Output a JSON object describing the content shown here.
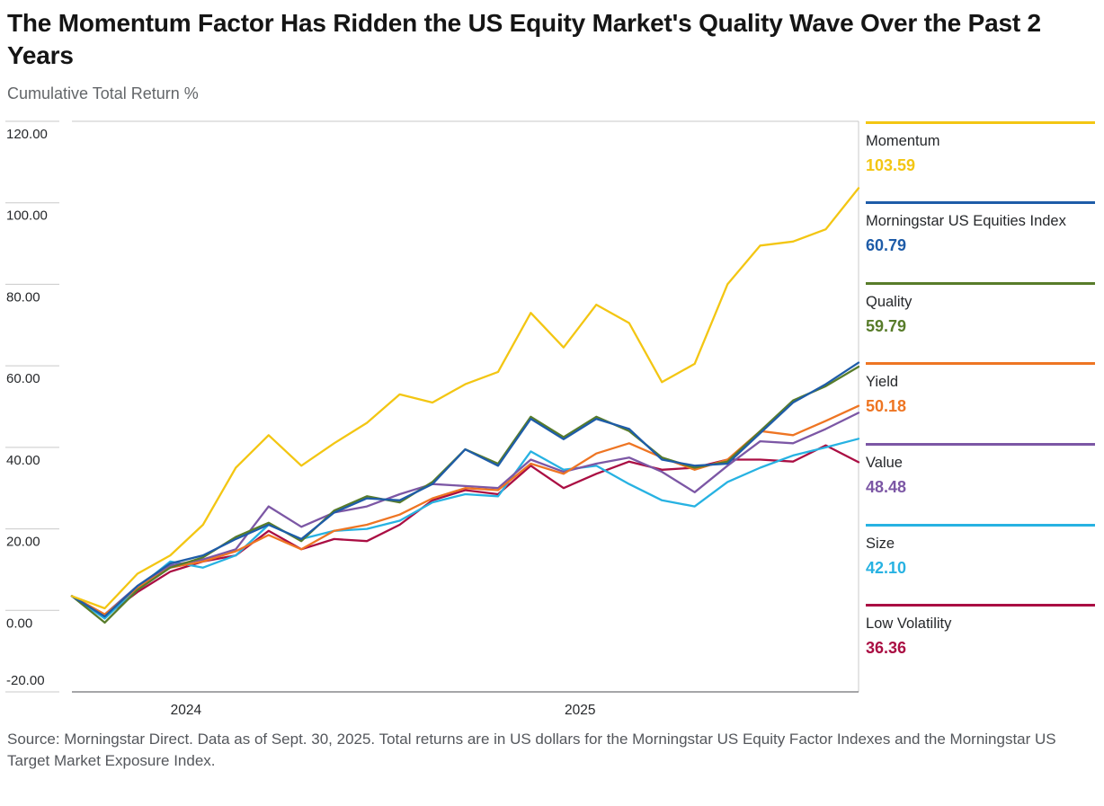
{
  "header": {
    "title": "The Momentum Factor Has Ridden the US Equity Market's Quality Wave Over the Past 2 Years",
    "subtitle": "Cumulative Total Return %"
  },
  "footer": {
    "source": "Source: Morningstar Direct. Data as of Sept. 30, 2025. Total returns are in US dollars for the Morningstar US Equity Factor Indexes and the Morningstar US Target Market Exposure Index."
  },
  "chart_data": {
    "type": "line",
    "title": "The Momentum Factor Has Ridden the US Equity Market's Quality Wave Over the Past 2 Years",
    "ylabel": "Cumulative Total Return %",
    "xlabel": "",
    "ylim": [
      -20,
      120
    ],
    "y_tick_values": [
      120,
      100,
      80,
      60,
      40,
      20,
      0,
      -20
    ],
    "y_tick_labels": [
      "120.00",
      "100.00",
      "80.00",
      "60.00",
      "40.00",
      "20.00",
      "0.00",
      "-20.00"
    ],
    "x_tick_labels": [
      "2024",
      "2025"
    ],
    "x_tick_positions": [
      0.145,
      0.646
    ],
    "grid": false,
    "legend_position": "right",
    "x": [
      "2023-09",
      "2023-10",
      "2023-11",
      "2023-12",
      "2024-01",
      "2024-02",
      "2024-03",
      "2024-04",
      "2024-05",
      "2024-06",
      "2024-07",
      "2024-08",
      "2024-09",
      "2024-10",
      "2024-11",
      "2024-12",
      "2025-01",
      "2025-02",
      "2025-03",
      "2025-04",
      "2025-05",
      "2025-06",
      "2025-07",
      "2025-08",
      "2025-09"
    ],
    "series": [
      {
        "name": "Momentum",
        "display_value": "103.59",
        "color": "#F3C613",
        "values": [
          3.5,
          0.5,
          9,
          13.5,
          21,
          35,
          43,
          35.5,
          41,
          46,
          53,
          51,
          55.5,
          58.5,
          73,
          64.5,
          75,
          70.5,
          56,
          60.5,
          80,
          89.5,
          90.5,
          93.5,
          103.59
        ]
      },
      {
        "name": "Morningstar US Equities Index",
        "display_value": "60.79",
        "color": "#1E5CA8",
        "values": [
          3.5,
          -1.5,
          6,
          11.5,
          13.5,
          17.5,
          21,
          17.5,
          24,
          27.5,
          27,
          31,
          39.5,
          35.5,
          47,
          42,
          47,
          44.5,
          37,
          35.5,
          36,
          43.5,
          51,
          55.5,
          60.79
        ]
      },
      {
        "name": "Quality",
        "display_value": "59.79",
        "color": "#587C2A",
        "values": [
          3.5,
          -3,
          5,
          10.5,
          13,
          18,
          21.5,
          17,
          24.5,
          28,
          26.5,
          31.5,
          39.5,
          36,
          47.5,
          42.5,
          47.5,
          44,
          37.5,
          35,
          36.5,
          44,
          51.5,
          55,
          59.79
        ]
      },
      {
        "name": "Yield",
        "display_value": "50.18",
        "color": "#EE7523",
        "values": [
          3.5,
          -1,
          5.5,
          10.5,
          12,
          14.5,
          18.5,
          15,
          19.5,
          21,
          23.5,
          27.5,
          30,
          29.5,
          36,
          33.5,
          38.5,
          41,
          37.5,
          34.5,
          37,
          44,
          43,
          46.5,
          50.18
        ]
      },
      {
        "name": "Value",
        "display_value": "48.48",
        "color": "#7C57A5",
        "values": [
          3.5,
          -1,
          6,
          11,
          12.5,
          15,
          25.5,
          20.5,
          24,
          25.5,
          28.5,
          31,
          30.5,
          30,
          37,
          34,
          36,
          37.5,
          34,
          29,
          35.5,
          41.5,
          41,
          44.5,
          48.48
        ]
      },
      {
        "name": "Size",
        "display_value": "42.10",
        "color": "#27B2E2",
        "values": [
          3.5,
          -2,
          5.5,
          12,
          10.5,
          13.5,
          21,
          17.5,
          19.5,
          20,
          22,
          26.5,
          28.5,
          28,
          39,
          34.5,
          35.5,
          31,
          27,
          25.5,
          31.5,
          35,
          38,
          40,
          42.1
        ]
      },
      {
        "name": "Low Volatility",
        "display_value": "36.36",
        "color": "#AA0E43",
        "values": [
          3.5,
          -1.5,
          4.5,
          9.5,
          12,
          13.5,
          19.5,
          15,
          17.5,
          17,
          21,
          27,
          29.5,
          28.5,
          35.5,
          30,
          33.5,
          36.5,
          34.5,
          35,
          37,
          37,
          36.5,
          40.5,
          36.36
        ]
      }
    ]
  }
}
